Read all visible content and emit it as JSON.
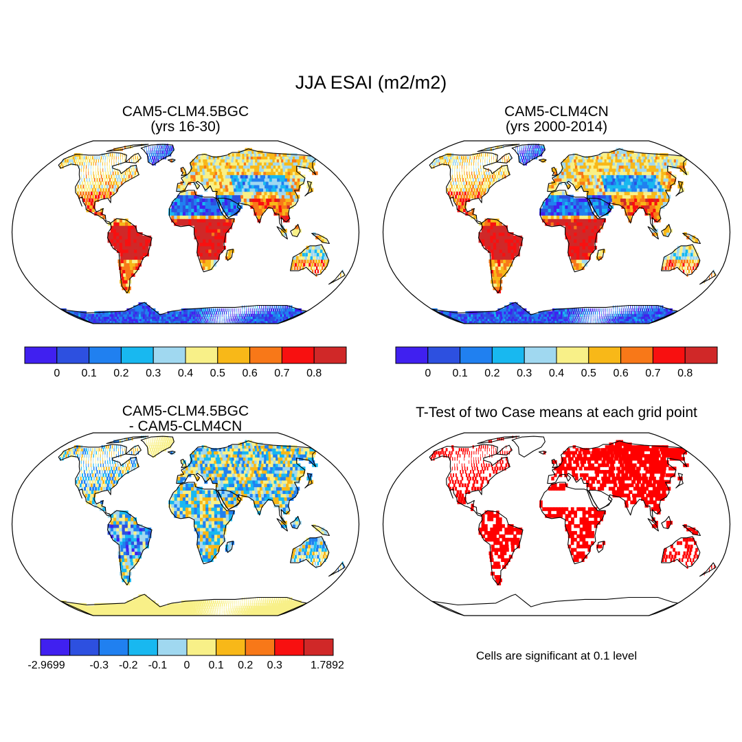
{
  "title": "JJA ESAI (m2/m2)",
  "panels": [
    {
      "id": "case1",
      "title_lines": [
        "CAM5-CLM4.5BGC",
        "(yrs 16-30)"
      ],
      "map_type": "value_field"
    },
    {
      "id": "case2",
      "title_lines": [
        "CAM5-CLM4CN",
        "(yrs 2000-2014)"
      ],
      "map_type": "value_field"
    },
    {
      "id": "difference",
      "title_lines": [
        "CAM5-CLM4.5BGC",
        "- CAM5-CLM4CN"
      ],
      "map_type": "difference_field"
    },
    {
      "id": "ttest",
      "title_lines": [
        "T-Test of two Case means at each grid point"
      ],
      "map_type": "significance_mask",
      "note": "Cells are significant at 0.1 level"
    }
  ],
  "colorbars": {
    "value": {
      "colors": [
        "#4020f0",
        "#2d50e0",
        "#2080f0",
        "#18b8f0",
        "#a0d8f0",
        "#f8f088",
        "#f8b818",
        "#f87818",
        "#f81010",
        "#d02828"
      ],
      "tick_labels": [
        "0",
        "0.1",
        "0.2",
        "0.3",
        "0.4",
        "0.5",
        "0.6",
        "0.7",
        "0.8"
      ]
    },
    "difference": {
      "colors": [
        "#4020f0",
        "#2d50e0",
        "#2080f0",
        "#18b8f0",
        "#a0d8f0",
        "#f8f088",
        "#f8b818",
        "#f87818",
        "#f81010",
        "#d02828"
      ],
      "tick_labels": [
        "-0.3",
        "-0.2",
        "-0.1",
        "0",
        "0.1",
        "0.2",
        "0.3"
      ],
      "min_label": "-2.9699",
      "max_label": "1.7892"
    }
  },
  "significance_color": "#ff0000"
}
